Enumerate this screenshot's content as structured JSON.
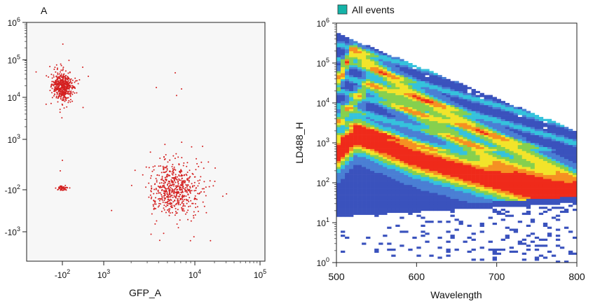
{
  "chart_data": [
    {
      "type": "scatter",
      "title": "A",
      "xlabel": "GFP_A",
      "ylabel": "",
      "x_scale": "biexponential",
      "y_scale": "biexponential",
      "x_ticks": [
        {
          "value": -100,
          "label": "-10",
          "exp": "2"
        },
        {
          "value": 1000,
          "label": "10",
          "exp": "3"
        },
        {
          "value": 10000,
          "label": "10",
          "exp": "4"
        },
        {
          "value": 100000,
          "label": "10",
          "exp": "5"
        }
      ],
      "y_ticks": [
        {
          "value": 1000000,
          "label": "10",
          "exp": "6"
        },
        {
          "value": 100000,
          "label": "10",
          "exp": "5"
        },
        {
          "value": 10000,
          "label": "10",
          "exp": "4"
        },
        {
          "value": 1000,
          "label": "10",
          "exp": "3"
        },
        {
          "value": -100,
          "label": "-10",
          "exp": "2"
        },
        {
          "value": -1000,
          "label": "-10",
          "exp": "3"
        }
      ],
      "point_color": "#d42020",
      "clusters": [
        {
          "x_center": -100,
          "y_center": 20000,
          "n_points": 520
        },
        {
          "x_center": -100,
          "y_center": -70,
          "n_points": 45
        },
        {
          "x_center": 6000,
          "y_center": -90,
          "n_points": 600
        }
      ],
      "grid": false
    },
    {
      "type": "heatmap",
      "legend": [
        {
          "label": "All events",
          "color": "#14b3a8"
        }
      ],
      "xlabel": "Wavelength",
      "ylabel": "LD488_H",
      "xlim": [
        500,
        800
      ],
      "ylim": [
        1,
        1000000
      ],
      "y_scale": "log",
      "x_ticks": [
        500,
        600,
        700,
        800
      ],
      "y_ticks": [
        {
          "value": 1000000,
          "label": "10",
          "exp": "6"
        },
        {
          "value": 100000,
          "label": "10",
          "exp": "5"
        },
        {
          "value": 10000,
          "label": "10",
          "exp": "4"
        },
        {
          "value": 1000,
          "label": "10",
          "exp": "3"
        },
        {
          "value": 100,
          "label": "10",
          "exp": "2"
        },
        {
          "value": 10,
          "label": "10",
          "exp": "1"
        },
        {
          "value": 1,
          "label": "10",
          "exp": "0"
        }
      ],
      "colormap": [
        "#3a52bd",
        "#4a7fd4",
        "#35c2dc",
        "#86d04e",
        "#f2e42a",
        "#f59022",
        "#ef2a1a"
      ],
      "density_bands": [
        {
          "x": [
            500,
            525,
            600,
            700,
            800
          ],
          "y": [
            500,
            1600,
            400,
            110,
            30
          ],
          "strength": 1.0
        },
        {
          "x": [
            500,
            520,
            600,
            700,
            800
          ],
          "y": [
            30000,
            200000,
            15000,
            1200,
            120
          ],
          "strength": 0.55
        },
        {
          "x": [
            500,
            540,
            620,
            700,
            800
          ],
          "y": [
            3000,
            30000,
            3000,
            350,
            60
          ],
          "strength": 0.45
        }
      ],
      "grid": false
    }
  ]
}
